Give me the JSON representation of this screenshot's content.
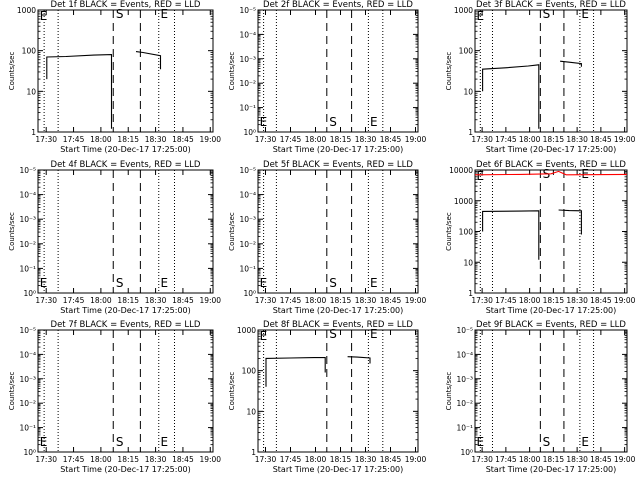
{
  "chart_data": [
    {
      "type": "line",
      "title": "Det 1f BLACK = Events, RED = LLD",
      "xlabel": "Start Time (20-Dec-17 17:25:00)",
      "ylabel": "Counts/sec",
      "ylog": true,
      "ylim": [
        1,
        1000
      ],
      "yticks": [
        "1",
        "10",
        "100",
        "1000"
      ],
      "xticks": [
        "17:30",
        "17:45",
        "18:00",
        "18:15",
        "18:30",
        "18:45",
        "19:00"
      ],
      "markers": [
        "E",
        "S",
        "E"
      ],
      "series": [
        {
          "color": "#000000",
          "values": [
            [
              0.05,
              20
            ],
            [
              0.05,
              70
            ],
            [
              0.16,
              72
            ],
            [
              0.32,
              78
            ],
            [
              0.42,
              80
            ],
            [
              0.42,
              1.2
            ]
          ]
        },
        {
          "color": "#000000",
          "values": [
            [
              0.56,
              95
            ],
            [
              0.6,
              90
            ],
            [
              0.7,
              75
            ],
            [
              0.7,
              35
            ]
          ]
        }
      ]
    },
    {
      "type": "line",
      "title": "Det 2f BLACK = Events, RED = LLD",
      "xlabel": "Start Time (20-Dec-17 17:25:00)",
      "ylabel": "Counts/sec",
      "ylog": true,
      "yticks": [
        "10⁰",
        "10⁻¹",
        "10⁻²",
        "10⁻³",
        "10⁻⁴",
        "10⁻⁵"
      ],
      "xticks": [
        "17:30",
        "17:45",
        "18:00",
        "18:15",
        "18:30",
        "18:45",
        "19:00"
      ],
      "markers": [
        "E",
        "S",
        "E"
      ],
      "series": []
    },
    {
      "type": "line",
      "title": "Det 3f BLACK = Events, RED = LLD",
      "xlabel": "Start Time (20-Dec-17 17:25:00)",
      "ylabel": "Counts/sec",
      "ylog": true,
      "ylim": [
        1,
        1000
      ],
      "yticks": [
        "1",
        "10",
        "100",
        "1000"
      ],
      "xticks": [
        "17:30",
        "17:45",
        "18:00",
        "18:15",
        "18:30",
        "18:45",
        "19:00"
      ],
      "markers": [
        "E",
        "S",
        "E"
      ],
      "series": [
        {
          "color": "#000000",
          "values": [
            [
              0.05,
              10
            ],
            [
              0.05,
              35
            ],
            [
              0.2,
              38
            ],
            [
              0.35,
              42
            ],
            [
              0.42,
              45
            ],
            [
              0.42,
              1.2
            ]
          ]
        },
        {
          "color": "#000000",
          "values": [
            [
              0.56,
              55
            ],
            [
              0.62,
              52
            ],
            [
              0.7,
              48
            ],
            [
              0.7,
              40
            ]
          ]
        }
      ]
    },
    {
      "type": "line",
      "title": "Det 4f BLACK = Events, RED = LLD",
      "xlabel": "Start Time (20-Dec-17 17:25:00)",
      "ylabel": "Counts/sec",
      "ylog": true,
      "yticks": [
        "10⁰",
        "10⁻¹",
        "10⁻²",
        "10⁻³",
        "10⁻⁴",
        "10⁻⁵"
      ],
      "xticks": [
        "17:30",
        "17:45",
        "18:00",
        "18:15",
        "18:30",
        "18:45",
        "19:00"
      ],
      "markers": [
        "E",
        "S",
        "E"
      ],
      "series": []
    },
    {
      "type": "line",
      "title": "Det 5f BLACK = Events, RED = LLD",
      "xlabel": "Start Time (20-Dec-17 17:25:00)",
      "ylabel": "Counts/sec",
      "ylog": true,
      "yticks": [
        "10⁰",
        "10⁻¹",
        "10⁻²",
        "10⁻³",
        "10⁻⁴",
        "10⁻⁵"
      ],
      "xticks": [
        "17:30",
        "17:45",
        "18:00",
        "18:15",
        "18:30",
        "18:45",
        "19:00"
      ],
      "markers": [
        "E",
        "S",
        "E"
      ],
      "series": []
    },
    {
      "type": "line",
      "title": "Det 6f BLACK = Events, RED = LLD",
      "xlabel": "Start Time (20-Dec-17 17:25:00)",
      "ylabel": "Counts/sec",
      "ylog": true,
      "ylim": [
        1,
        10000
      ],
      "yticks": [
        "1",
        "10",
        "100",
        "1000",
        "10000"
      ],
      "xticks": [
        "17:30",
        "17:45",
        "18:00",
        "18:15",
        "18:30",
        "18:45",
        "19:00"
      ],
      "markers": [
        "E",
        "S",
        "E"
      ],
      "series": [
        {
          "color": "#000000",
          "values": [
            [
              0.05,
              100
            ],
            [
              0.05,
              450
            ],
            [
              0.3,
              460
            ],
            [
              0.42,
              470
            ],
            [
              0.42,
              12
            ]
          ]
        },
        {
          "color": "#000000",
          "values": [
            [
              0.55,
              500
            ],
            [
              0.62,
              480
            ],
            [
              0.7,
              470
            ],
            [
              0.7,
              80
            ]
          ]
        },
        {
          "color": "#ff0000",
          "values": [
            [
              0.0,
              7000
            ],
            [
              0.3,
              7200
            ],
            [
              0.5,
              7500
            ],
            [
              0.55,
              9000
            ],
            [
              0.6,
              7000
            ],
            [
              1.0,
              7200
            ]
          ]
        }
      ]
    },
    {
      "type": "line",
      "title": "Det 7f BLACK = Events, RED = LLD",
      "xlabel": "Start Time (20-Dec-17 17:25:00)",
      "ylabel": "Counts/sec",
      "ylog": true,
      "yticks": [
        "10⁰",
        "10⁻¹",
        "10⁻²",
        "10⁻³",
        "10⁻⁴",
        "10⁻⁵"
      ],
      "xticks": [
        "17:30",
        "17:45",
        "18:00",
        "18:15",
        "18:30",
        "18:45",
        "19:00"
      ],
      "markers": [
        "E",
        "S",
        "E"
      ],
      "series": []
    },
    {
      "type": "line",
      "title": "Det 8f BLACK = Events, RED = LLD",
      "xlabel": "Start Time (20-Dec-17 17:25:00)",
      "ylabel": "Counts/sec",
      "ylog": true,
      "ylim": [
        1,
        1000
      ],
      "yticks": [
        "1",
        "10",
        "100",
        "1000"
      ],
      "xticks": [
        "17:30",
        "17:45",
        "18:00",
        "18:15",
        "18:30",
        "18:45",
        "19:00"
      ],
      "markers": [
        "E",
        "S",
        "E"
      ],
      "series": [
        {
          "color": "#000000",
          "values": [
            [
              0.05,
              40
            ],
            [
              0.05,
              200
            ],
            [
              0.2,
              205
            ],
            [
              0.35,
              210
            ],
            [
              0.42,
              210
            ],
            [
              0.42,
              90
            ]
          ]
        },
        {
          "color": "#000000",
          "values": [
            [
              0.56,
              220
            ],
            [
              0.62,
              215
            ],
            [
              0.7,
              205
            ],
            [
              0.7,
              150
            ]
          ]
        }
      ]
    },
    {
      "type": "line",
      "title": "Det 9f BLACK = Events, RED = LLD",
      "xlabel": "Start Time (20-Dec-17 17:25:00)",
      "ylabel": "Counts/sec",
      "ylog": true,
      "yticks": [
        "10⁰",
        "10⁻¹",
        "10⁻²",
        "10⁻³",
        "10⁻⁴",
        "10⁻⁵"
      ],
      "xticks": [
        "17:30",
        "17:45",
        "18:00",
        "18:15",
        "18:30",
        "18:45",
        "19:00"
      ],
      "markers": [
        "E",
        "S",
        "E"
      ],
      "series": []
    }
  ]
}
